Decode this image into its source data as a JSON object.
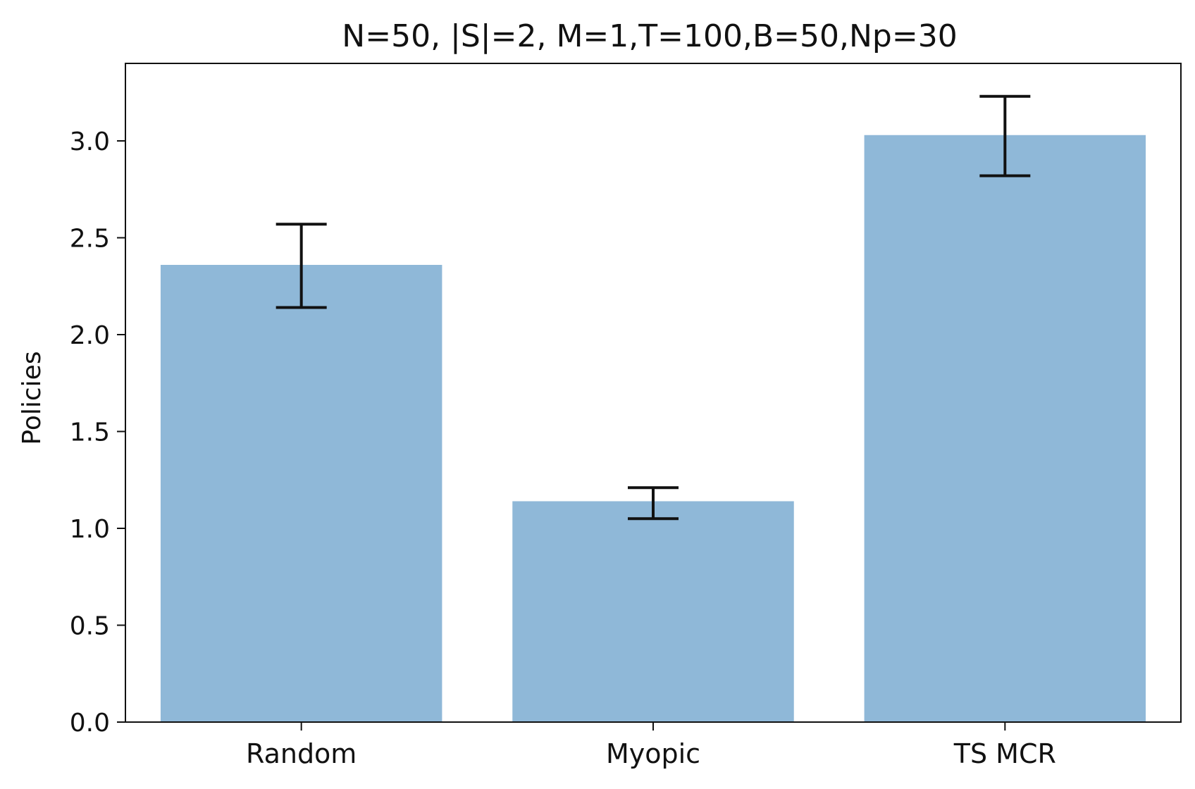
{
  "chart_data": {
    "type": "bar",
    "title": "N=50, |S|=2, M=1,T=100,B=50,Np=30",
    "xlabel": "",
    "ylabel": "Policies",
    "categories": [
      "Random",
      "Myopic",
      "TS MCR"
    ],
    "values": [
      2.36,
      1.14,
      3.03
    ],
    "error_low": [
      2.14,
      1.05,
      2.82
    ],
    "error_high": [
      2.57,
      1.21,
      3.23
    ],
    "ylim": [
      0,
      3.4
    ],
    "yticks": [
      0.0,
      0.5,
      1.0,
      1.5,
      2.0,
      2.5,
      3.0
    ],
    "ytick_labels": [
      "0.0",
      "0.5",
      "1.0",
      "1.5",
      "2.0",
      "2.5",
      "3.0"
    ],
    "grid": false,
    "colors": {
      "bar": "#8fb8d8",
      "error": "#111111",
      "axes": "#111111"
    }
  }
}
